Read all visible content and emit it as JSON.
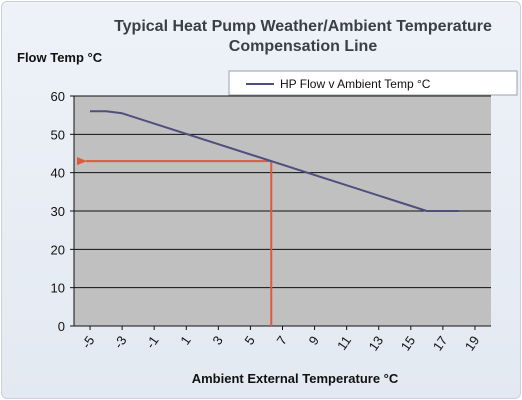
{
  "chart_data": {
    "type": "line",
    "title": "Typical Heat Pump Weather/Ambient Temperature Compensation Line",
    "title_lines": [
      "Typical Heat Pump Weather/Ambient Temperature",
      "Compensation Line"
    ],
    "xlabel": "Ambient External Temperature °C",
    "ylabel": "Flow Temp °C",
    "x_ticks": [
      -5,
      -3,
      -1,
      1,
      3,
      5,
      7,
      9,
      11,
      13,
      15,
      17,
      19
    ],
    "y_ticks": [
      0,
      10,
      20,
      30,
      40,
      50,
      60
    ],
    "xlim": [
      -6,
      20
    ],
    "ylim": [
      0,
      60
    ],
    "grid": true,
    "legend_position": "top-right",
    "colors": {
      "plot_background": "#c0c0c0",
      "series_line": "#4f4e7d",
      "annotation": "#e1583c",
      "gridline": "#111111"
    },
    "series": [
      {
        "name": "HP Flow v Ambient Temp °C",
        "x": [
          -5,
          -4,
          -3,
          16,
          18
        ],
        "y": [
          56,
          56,
          55.5,
          30,
          30
        ]
      }
    ],
    "annotations": [
      {
        "type": "lookup-arrow",
        "x": 6.3,
        "y": 43
      }
    ]
  }
}
